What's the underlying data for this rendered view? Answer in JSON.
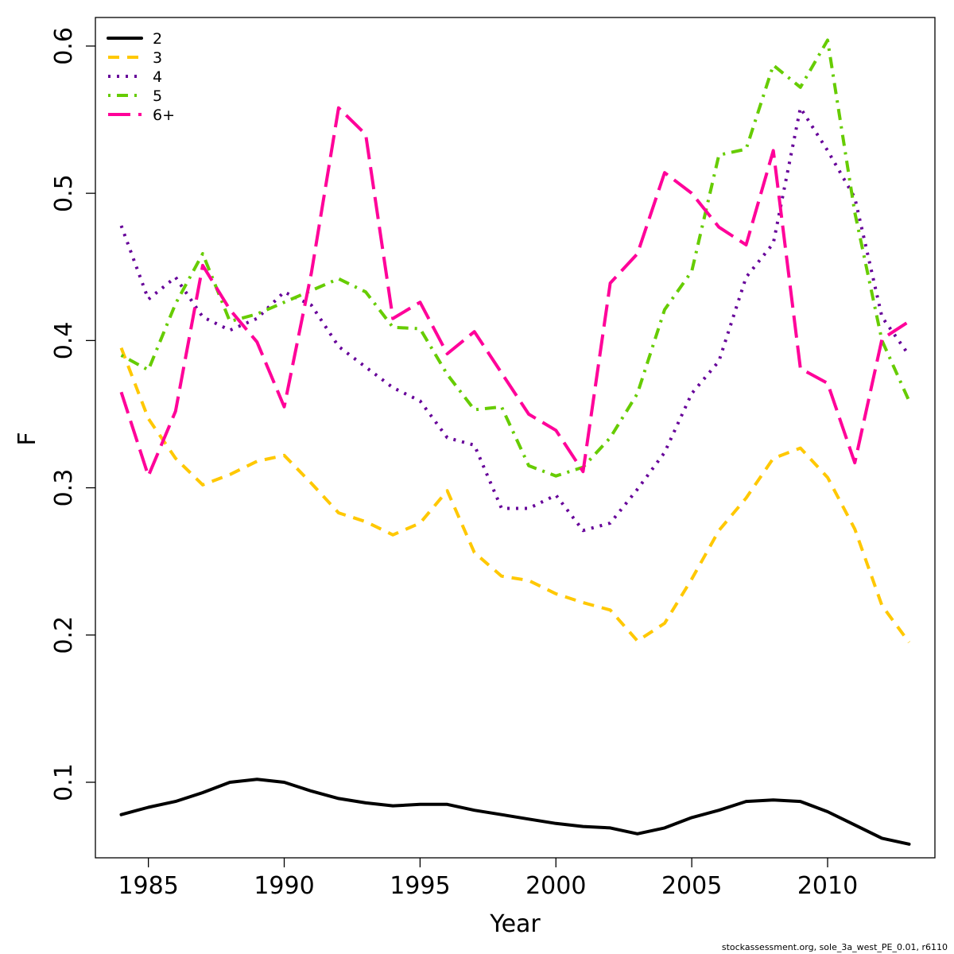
{
  "chart_data": {
    "type": "line",
    "title": "",
    "xlabel": "Year",
    "ylabel": "F",
    "xlim": [
      1983.05,
      2013.95
    ],
    "ylim": [
      0.0487,
      0.6194
    ],
    "xticks": [
      1985,
      1990,
      1995,
      2000,
      2005,
      2010
    ],
    "yticks": [
      0.1,
      0.2,
      0.3,
      0.4,
      0.5,
      0.6
    ],
    "xtick_labels": [
      "1985",
      "1990",
      "1995",
      "2000",
      "2005",
      "2010"
    ],
    "ytick_labels": [
      "0.1",
      "0.2",
      "0.3",
      "0.4",
      "0.5",
      "0.6"
    ],
    "grid": false,
    "legend_position": "top-left",
    "x": [
      1984,
      1985,
      1986,
      1987,
      1988,
      1989,
      1990,
      1991,
      1992,
      1993,
      1994,
      1995,
      1996,
      1997,
      1998,
      1999,
      2000,
      2001,
      2002,
      2003,
      2004,
      2005,
      2006,
      2007,
      2008,
      2009,
      2010,
      2011,
      2012,
      2013
    ],
    "series": [
      {
        "name": "2",
        "color": "#000000",
        "dash": "solid",
        "values": [
          0.078,
          0.083,
          0.087,
          0.093,
          0.1,
          0.102,
          0.1,
          0.094,
          0.089,
          0.086,
          0.084,
          0.085,
          0.085,
          0.081,
          0.078,
          0.075,
          0.072,
          0.07,
          0.069,
          0.065,
          0.069,
          0.076,
          0.081,
          0.087,
          0.088,
          0.087,
          0.08,
          0.071,
          0.062,
          0.058
        ]
      },
      {
        "name": "3",
        "color": "#ffc800",
        "dash": "dashed",
        "values": [
          0.395,
          0.347,
          0.32,
          0.302,
          0.309,
          0.318,
          0.322,
          0.303,
          0.283,
          0.277,
          0.268,
          0.276,
          0.298,
          0.256,
          0.24,
          0.237,
          0.228,
          0.222,
          0.217,
          0.196,
          0.208,
          0.238,
          0.271,
          0.293,
          0.32,
          0.327,
          0.307,
          0.272,
          0.22,
          0.195
        ]
      },
      {
        "name": "4",
        "color": "#660099",
        "dash": "dotted",
        "values": [
          0.478,
          0.428,
          0.443,
          0.416,
          0.407,
          0.415,
          0.433,
          0.424,
          0.396,
          0.382,
          0.368,
          0.359,
          0.334,
          0.329,
          0.286,
          0.286,
          0.295,
          0.271,
          0.276,
          0.299,
          0.324,
          0.364,
          0.386,
          0.443,
          0.466,
          0.558,
          0.529,
          0.497,
          0.416,
          0.39
        ]
      },
      {
        "name": "5",
        "color": "#66cc00",
        "dash": "dotdash",
        "values": [
          0.39,
          0.38,
          0.425,
          0.459,
          0.413,
          0.418,
          0.426,
          0.434,
          0.442,
          0.433,
          0.409,
          0.408,
          0.377,
          0.353,
          0.355,
          0.315,
          0.308,
          0.314,
          0.334,
          0.364,
          0.421,
          0.447,
          0.526,
          0.53,
          0.587,
          0.572,
          0.604,
          0.487,
          0.4,
          0.359
        ]
      },
      {
        "name": "6+",
        "color": "#ff0099",
        "dash": "longdash",
        "values": [
          0.365,
          0.308,
          0.352,
          0.451,
          0.421,
          0.399,
          0.355,
          0.446,
          0.558,
          0.54,
          0.415,
          0.426,
          0.391,
          0.406,
          0.378,
          0.35,
          0.339,
          0.311,
          0.439,
          0.459,
          0.514,
          0.5,
          0.477,
          0.465,
          0.529,
          0.381,
          0.371,
          0.317,
          0.401,
          0.413
        ]
      }
    ]
  },
  "footer": {
    "text": "stockassessment.org, sole_3a_west_PE_0.01, r6110"
  }
}
